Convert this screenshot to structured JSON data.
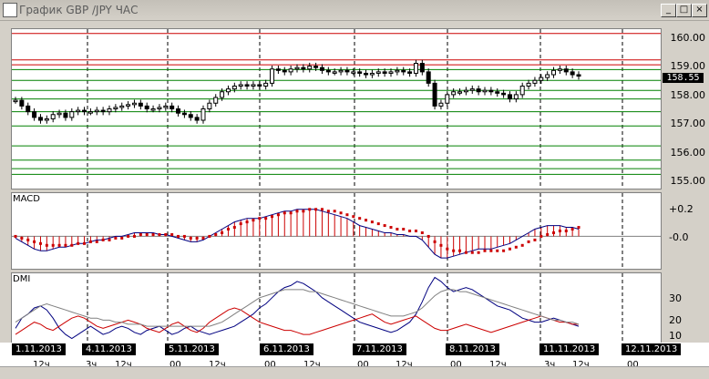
{
  "window": {
    "title": "График GBP /JPY ЧАС",
    "minimize": "_",
    "maximize": "□",
    "close": "×"
  },
  "price_axis": {
    "labels": [
      "160.00",
      "159.00",
      "158.00",
      "157.00",
      "156.00",
      "155.00"
    ],
    "current_price": "158.55"
  },
  "macd": {
    "title": "MACD",
    "labels": [
      "+0.2",
      "-0.0"
    ]
  },
  "dmi": {
    "title": "DMI",
    "labels": [
      "30",
      "20",
      "10"
    ]
  },
  "dates": [
    "1.11.2013",
    "4.11.2013",
    "5.11.2013",
    "6.11.2013",
    "7.11.2013",
    "8.11.2013",
    "11.11.2013",
    "12.11.2013"
  ],
  "hours": [
    "12ч",
    "3ч",
    "12ч",
    "00",
    "12ч",
    "00",
    "12ч",
    "00",
    "12ч",
    "00",
    "12ч",
    "3ч",
    "12ч",
    "00"
  ],
  "colors": {
    "candles": "#000000",
    "macd_line": "#000080",
    "macd_signal": "#cc0000",
    "dmi_plus": "#000080",
    "dmi_minus": "#cc0000",
    "adx": "#808080",
    "support": "#008000",
    "resistance": "#cc0000"
  },
  "chart_data": [
    {
      "type": "candlestick",
      "title": "График GBP /JPY ЧАС",
      "ylim": [
        154.6,
        160.2
      ],
      "x_labels": [
        "1.11.2013",
        "4.11.2013",
        "5.11.2013",
        "6.11.2013",
        "7.11.2013",
        "8.11.2013",
        "11.11.2013",
        "12.11.2013"
      ],
      "levels_red": [
        160.05,
        159.12,
        158.95
      ],
      "levels_green": [
        158.78,
        158.4,
        158.05,
        157.75,
        157.3,
        156.8,
        156.1,
        155.6,
        155.3,
        155.1
      ],
      "close": [
        157.7,
        157.5,
        157.3,
        157.1,
        157.0,
        157.05,
        157.2,
        157.25,
        157.1,
        157.3,
        157.35,
        157.3,
        157.3,
        157.35,
        157.3,
        157.4,
        157.45,
        157.5,
        157.55,
        157.6,
        157.5,
        157.4,
        157.4,
        157.45,
        157.5,
        157.4,
        157.25,
        157.2,
        157.1,
        157.0,
        157.4,
        157.6,
        157.8,
        158.0,
        158.1,
        158.2,
        158.25,
        158.2,
        158.25,
        158.2,
        158.3,
        158.8,
        158.75,
        158.7,
        158.8,
        158.85,
        158.8,
        158.9,
        158.85,
        158.75,
        158.7,
        158.7,
        158.75,
        158.7,
        158.7,
        158.65,
        158.6,
        158.65,
        158.7,
        158.65,
        158.7,
        158.75,
        158.7,
        158.65,
        159.0,
        158.7,
        158.3,
        157.5,
        157.6,
        157.9,
        158.0,
        158.0,
        158.05,
        158.1,
        158.0,
        158.05,
        158.0,
        157.95,
        157.9,
        157.75,
        157.9,
        158.2,
        158.3,
        158.4,
        158.5,
        158.6,
        158.75,
        158.8,
        158.7,
        158.6,
        158.55
      ]
    },
    {
      "type": "bar",
      "title": "MACD",
      "ylim": [
        -0.18,
        0.24
      ],
      "histogram": [
        -0.01,
        -0.03,
        -0.05,
        -0.07,
        -0.08,
        -0.08,
        -0.07,
        -0.06,
        -0.06,
        -0.05,
        -0.04,
        -0.04,
        -0.03,
        -0.02,
        -0.02,
        -0.01,
        0.0,
        0.0,
        0.01,
        0.02,
        0.02,
        0.02,
        0.02,
        0.01,
        0.01,
        0.0,
        -0.01,
        -0.02,
        -0.03,
        -0.03,
        -0.02,
        0.0,
        0.02,
        0.04,
        0.06,
        0.08,
        0.09,
        0.1,
        0.1,
        0.1,
        0.11,
        0.12,
        0.13,
        0.14,
        0.14,
        0.15,
        0.15,
        0.15,
        0.15,
        0.14,
        0.13,
        0.12,
        0.11,
        0.1,
        0.08,
        0.06,
        0.05,
        0.04,
        0.03,
        0.02,
        0.02,
        0.01,
        0.01,
        0.0,
        0.0,
        -0.02,
        -0.06,
        -0.1,
        -0.12,
        -0.12,
        -0.11,
        -0.1,
        -0.09,
        -0.08,
        -0.07,
        -0.07,
        -0.07,
        -0.06,
        -0.05,
        -0.04,
        -0.02,
        0.0,
        0.02,
        0.04,
        0.05,
        0.06,
        0.06,
        0.06,
        0.05,
        0.05,
        0.04
      ],
      "signal": [
        0.0,
        -0.01,
        -0.02,
        -0.03,
        -0.04,
        -0.05,
        -0.05,
        -0.05,
        -0.05,
        -0.05,
        -0.04,
        -0.04,
        -0.03,
        -0.03,
        -0.02,
        -0.02,
        -0.01,
        -0.01,
        0.0,
        0.0,
        0.01,
        0.01,
        0.01,
        0.01,
        0.01,
        0.01,
        0.0,
        0.0,
        -0.01,
        -0.01,
        -0.01,
        0.0,
        0.01,
        0.02,
        0.04,
        0.05,
        0.07,
        0.08,
        0.09,
        0.1,
        0.1,
        0.11,
        0.12,
        0.13,
        0.13,
        0.14,
        0.14,
        0.15,
        0.15,
        0.15,
        0.14,
        0.14,
        0.13,
        0.12,
        0.11,
        0.1,
        0.09,
        0.08,
        0.07,
        0.06,
        0.05,
        0.04,
        0.04,
        0.03,
        0.03,
        0.02,
        0.0,
        -0.03,
        -0.05,
        -0.07,
        -0.08,
        -0.08,
        -0.09,
        -0.09,
        -0.09,
        -0.08,
        -0.08,
        -0.08,
        -0.08,
        -0.07,
        -0.06,
        -0.05,
        -0.03,
        -0.02,
        0.0,
        0.01,
        0.02,
        0.03,
        0.03,
        0.04,
        0.05
      ]
    },
    {
      "type": "line",
      "title": "DMI",
      "ylim": [
        8,
        42
      ],
      "series": [
        {
          "values": [
            15,
            20,
            22,
            25,
            26,
            24,
            20,
            15,
            12,
            10,
            12,
            14,
            16,
            14,
            12,
            13,
            15,
            16,
            15,
            13,
            12,
            14,
            15,
            16,
            14,
            12,
            13,
            15,
            16,
            14,
            13,
            12,
            13,
            14,
            15,
            16,
            18,
            20,
            22,
            25,
            27,
            30,
            33,
            35,
            36,
            38,
            37,
            35,
            33,
            30,
            28,
            26,
            24,
            22,
            20,
            18,
            17,
            16,
            15,
            14,
            13,
            14,
            16,
            18,
            22,
            28,
            35,
            40,
            38,
            35,
            33,
            34,
            35,
            34,
            32,
            30,
            28,
            26,
            25,
            24,
            22,
            20,
            19,
            18,
            18,
            19,
            20,
            19,
            18,
            17,
            16
          ]
        },
        {
          "values": [
            12,
            14,
            16,
            18,
            17,
            15,
            14,
            16,
            18,
            20,
            21,
            20,
            18,
            16,
            15,
            16,
            17,
            18,
            19,
            18,
            17,
            15,
            14,
            13,
            15,
            17,
            18,
            16,
            14,
            13,
            15,
            18,
            20,
            22,
            24,
            25,
            24,
            22,
            20,
            18,
            17,
            16,
            15,
            14,
            14,
            13,
            12,
            12,
            13,
            14,
            15,
            16,
            17,
            18,
            19,
            20,
            21,
            22,
            20,
            18,
            17,
            18,
            19,
            20,
            21,
            19,
            17,
            15,
            14,
            14,
            15,
            16,
            17,
            16,
            15,
            14,
            13,
            14,
            15,
            16,
            17,
            18,
            19,
            20,
            21,
            20,
            19,
            18,
            18,
            17,
            17
          ]
        },
        {
          "values": [
            18,
            20,
            22,
            24,
            26,
            27,
            26,
            25,
            24,
            23,
            22,
            21,
            20,
            20,
            19,
            19,
            18,
            18,
            17,
            17,
            17,
            16,
            16,
            16,
            16,
            16,
            16,
            16,
            16,
            16,
            16,
            16,
            17,
            18,
            20,
            22,
            24,
            26,
            28,
            30,
            31,
            32,
            33,
            34,
            34,
            34,
            34,
            33,
            33,
            32,
            31,
            30,
            29,
            28,
            27,
            26,
            25,
            24,
            23,
            22,
            21,
            21,
            21,
            22,
            23,
            25,
            28,
            31,
            33,
            34,
            34,
            33,
            33,
            32,
            31,
            30,
            29,
            28,
            27,
            26,
            25,
            24,
            23,
            22,
            21,
            20,
            19,
            19,
            18,
            18,
            17
          ]
        }
      ]
    }
  ]
}
